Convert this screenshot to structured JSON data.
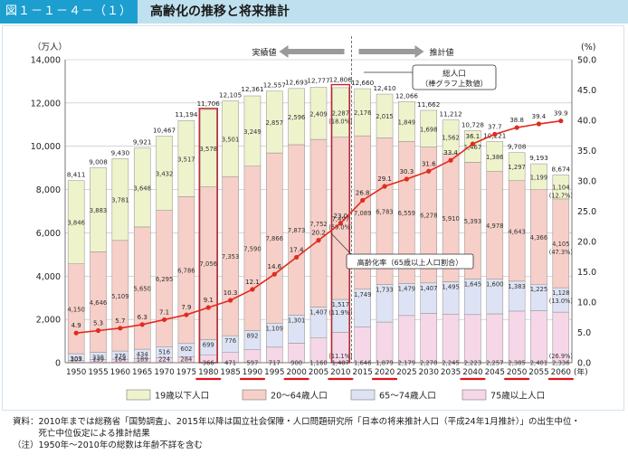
{
  "header": {
    "figure_label": "図１－１－４－（１）",
    "title": "高齢化の推移と将来推計"
  },
  "colors": {
    "under19": "#eef3cc",
    "age20_64": "#f6cfc8",
    "age65_74": "#dde3f4",
    "age75plus": "#f6d7e8",
    "line": "#e02b1e",
    "bar_border": "#c4232a",
    "underline": "#e0141b",
    "header_band": "#bfe0ee",
    "header_label": "#1c9fcf"
  },
  "chart_data": {
    "type": "bar",
    "stacked": true,
    "left_axis_unit": "（万人）",
    "right_axis_unit": "(%)",
    "left_ylim": [
      0,
      14000
    ],
    "left_ticks": [
      "0",
      "2,000",
      "4,000",
      "6,000",
      "8,000",
      "10,000",
      "12,000",
      "14,000"
    ],
    "right_ylim": [
      0,
      50
    ],
    "right_ticks": [
      "0.0",
      "5.0",
      "10.0",
      "15.0",
      "20.0",
      "25.0",
      "30.0",
      "35.0",
      "40.0",
      "45.0",
      "50.0"
    ],
    "categories": [
      "1950",
      "1955",
      "1960",
      "1965",
      "1970",
      "1975",
      "1980",
      "1985",
      "1990",
      "1995",
      "2000",
      "2005",
      "2010",
      "2015",
      "2020",
      "2025",
      "2030",
      "2035",
      "2040",
      "2045",
      "2050",
      "2055",
      "2060"
    ],
    "year_suffix": "(年)",
    "underlined_years": [
      "1980",
      "1990",
      "2000",
      "2010",
      "2020",
      "2040",
      "2050",
      "2060"
    ],
    "series": [
      {
        "name": "19歳以下人口",
        "values": [
          3846,
          3883,
          3781,
          3648,
          3432,
          3517,
          3578,
          3501,
          3249,
          2857,
          2596,
          2409,
          2287,
          2176,
          2015,
          1849,
          1698,
          1562,
          1467,
          1386,
          1297,
          1199,
          1104
        ]
      },
      {
        "name": "20～64歳人口",
        "values": [
          4150,
          4646,
          5109,
          5650,
          6295,
          6786,
          7056,
          7353,
          7590,
          7866,
          7873,
          7752,
          7497,
          7089,
          6783,
          6559,
          6278,
          5910,
          5393,
          4978,
          4643,
          4366,
          4105
        ]
      },
      {
        "name": "65～74歳人口",
        "values": [
          309,
          338,
          376,
          434,
          516,
          602,
          699,
          776,
          892,
          1109,
          1301,
          1407,
          1517,
          1749,
          1733,
          1479,
          1407,
          1495,
          1645,
          1600,
          1383,
          1225,
          1128
        ]
      },
      {
        "name": "75歳以上人口",
        "values": [
          107,
          139,
          164,
          189,
          224,
          284,
          366,
          471,
          597,
          717,
          900,
          1160,
          1407,
          1646,
          1879,
          2179,
          2278,
          2245,
          2223,
          2257,
          2385,
          2401,
          2336
        ]
      }
    ],
    "totals": [
      8411,
      9008,
      9430,
      9921,
      10467,
      11194,
      11706,
      12105,
      12361,
      12557,
      12693,
      12777,
      12806,
      12660,
      12410,
      12066,
      11662,
      11212,
      10728,
      10221,
      9708,
      9193,
      8674
    ],
    "totals_labels": [
      "8,411",
      "9,008",
      "9,430",
      "9,921",
      "10,467",
      "11,194",
      "11,706",
      "12,105",
      "12,361",
      "12,557",
      "12,693",
      "12,777",
      "12,806",
      "12,660",
      "12,410",
      "12,066",
      "11,662",
      "11,212",
      "10,728",
      "10,221",
      "9,708",
      "9,193",
      "8,674"
    ],
    "aging_rate": [
      4.9,
      5.3,
      5.7,
      6.3,
      7.1,
      7.9,
      9.1,
      10.3,
      12.1,
      14.6,
      17.4,
      20.2,
      23.0,
      26.8,
      29.1,
      30.3,
      31.6,
      33.4,
      36.1,
      37.7,
      38.8,
      39.4,
      39.9
    ],
    "aging_rate_labels": [
      "4.9",
      "5.3",
      "5.7",
      "6.3",
      "7.1",
      "7.9",
      "9.1",
      "10.3",
      "12.1",
      "14.6",
      "17.4",
      "20.2",
      "23.0",
      "26.8",
      "29.1",
      "30.3",
      "31.6",
      "33.4",
      "36.1",
      "37.7",
      "38.8",
      "39.4",
      "39.9"
    ],
    "share_labels": [
      {
        "year": "2010",
        "series": "19歳以下人口",
        "text": "(18.0%)"
      },
      {
        "year": "2010",
        "series": "20～64歳人口",
        "text": "(59.0%)"
      },
      {
        "year": "2010",
        "series": "65～74歳人口",
        "text": "(11.9%)"
      },
      {
        "year": "2010",
        "series": "75歳以上人口",
        "text": "(11.1%)"
      },
      {
        "year": "2060",
        "series": "19歳以下人口",
        "text": "(12.7%)"
      },
      {
        "year": "2060",
        "series": "20～64歳人口",
        "text": "(47.3%)"
      },
      {
        "year": "2060",
        "series": "65～74歳人口",
        "text": "(13.0%)"
      },
      {
        "year": "2060",
        "series": "75歳以上人口",
        "text": "(26.9%)"
      }
    ],
    "divider_after_year": "2010",
    "actual_label": "実績値",
    "projection_label": "推計値",
    "callout_total_line1": "総人口",
    "callout_total_line2": "（棒グラフ上数値）",
    "callout_rate": "高齢化率（65歳以上人口割合）",
    "legend_placement": "bottom"
  },
  "footnotes": [
    "資料：2010年までは総務省「国勢調査」、2015年以降は国立社会保障・人口問題研究所「日本の将来推計人口（平成24年1月推計）」の出生中位・",
    "　　　死亡中位仮定による推計結果",
    "（注）1950年～2010年の総数は年齢不詳を含む"
  ]
}
